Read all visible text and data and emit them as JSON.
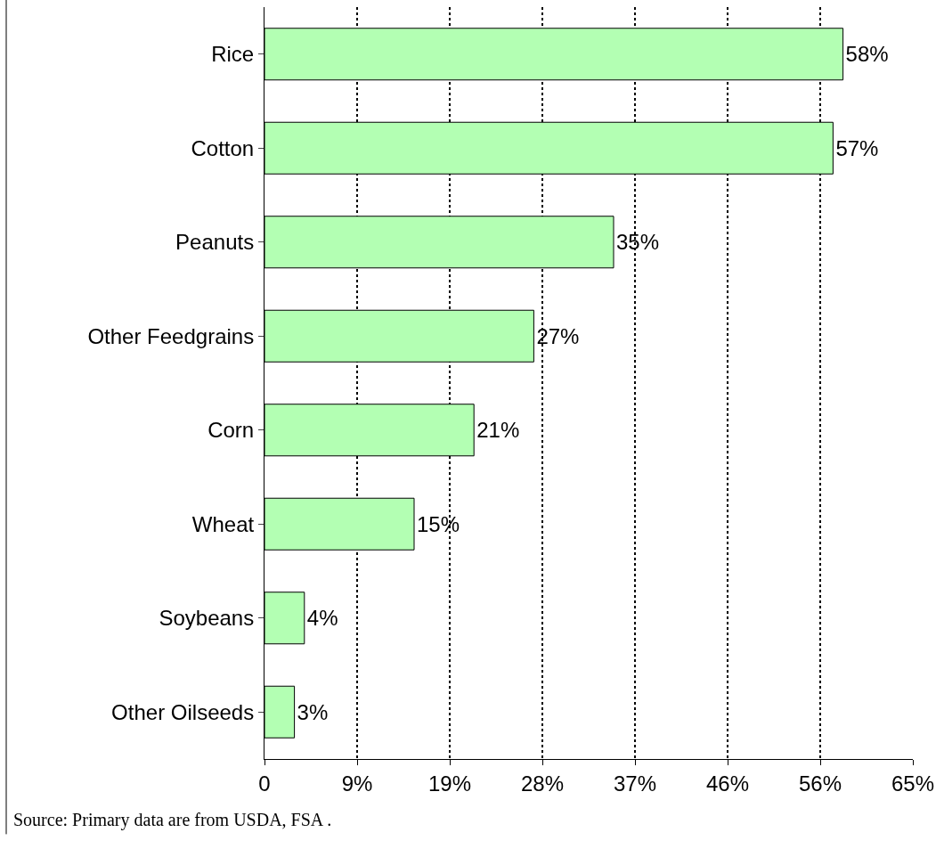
{
  "chart_data": {
    "type": "bar",
    "orientation": "horizontal",
    "categories": [
      "Rice",
      "Cotton",
      "Peanuts",
      "Other Feedgrains",
      "Corn",
      "Wheat",
      "Soybeans",
      "Other Oilseeds"
    ],
    "values": [
      58,
      57,
      35,
      27,
      21,
      15,
      4,
      3
    ],
    "value_labels": [
      "58%",
      "57%",
      "35%",
      "27%",
      "21%",
      "15%",
      "4%",
      "3%"
    ],
    "color": "#b3ffb3",
    "xlim": [
      0,
      65
    ],
    "xticks": [
      0,
      {
        "value": 9.286,
        "label": "9%"
      },
      {
        "value": 18.571,
        "label": "19%"
      },
      {
        "value": 27.857,
        "label": "28%"
      },
      {
        "value": 37.143,
        "label": "37%"
      },
      {
        "value": 46.429,
        "label": "46%"
      },
      {
        "value": 55.714,
        "label": "56%"
      },
      {
        "value": 65,
        "label": "65%"
      }
    ],
    "grid": "x",
    "line_style": "dotted",
    "annotations": [
      "Source: Primary data are from USDA, FSA ."
    ]
  }
}
